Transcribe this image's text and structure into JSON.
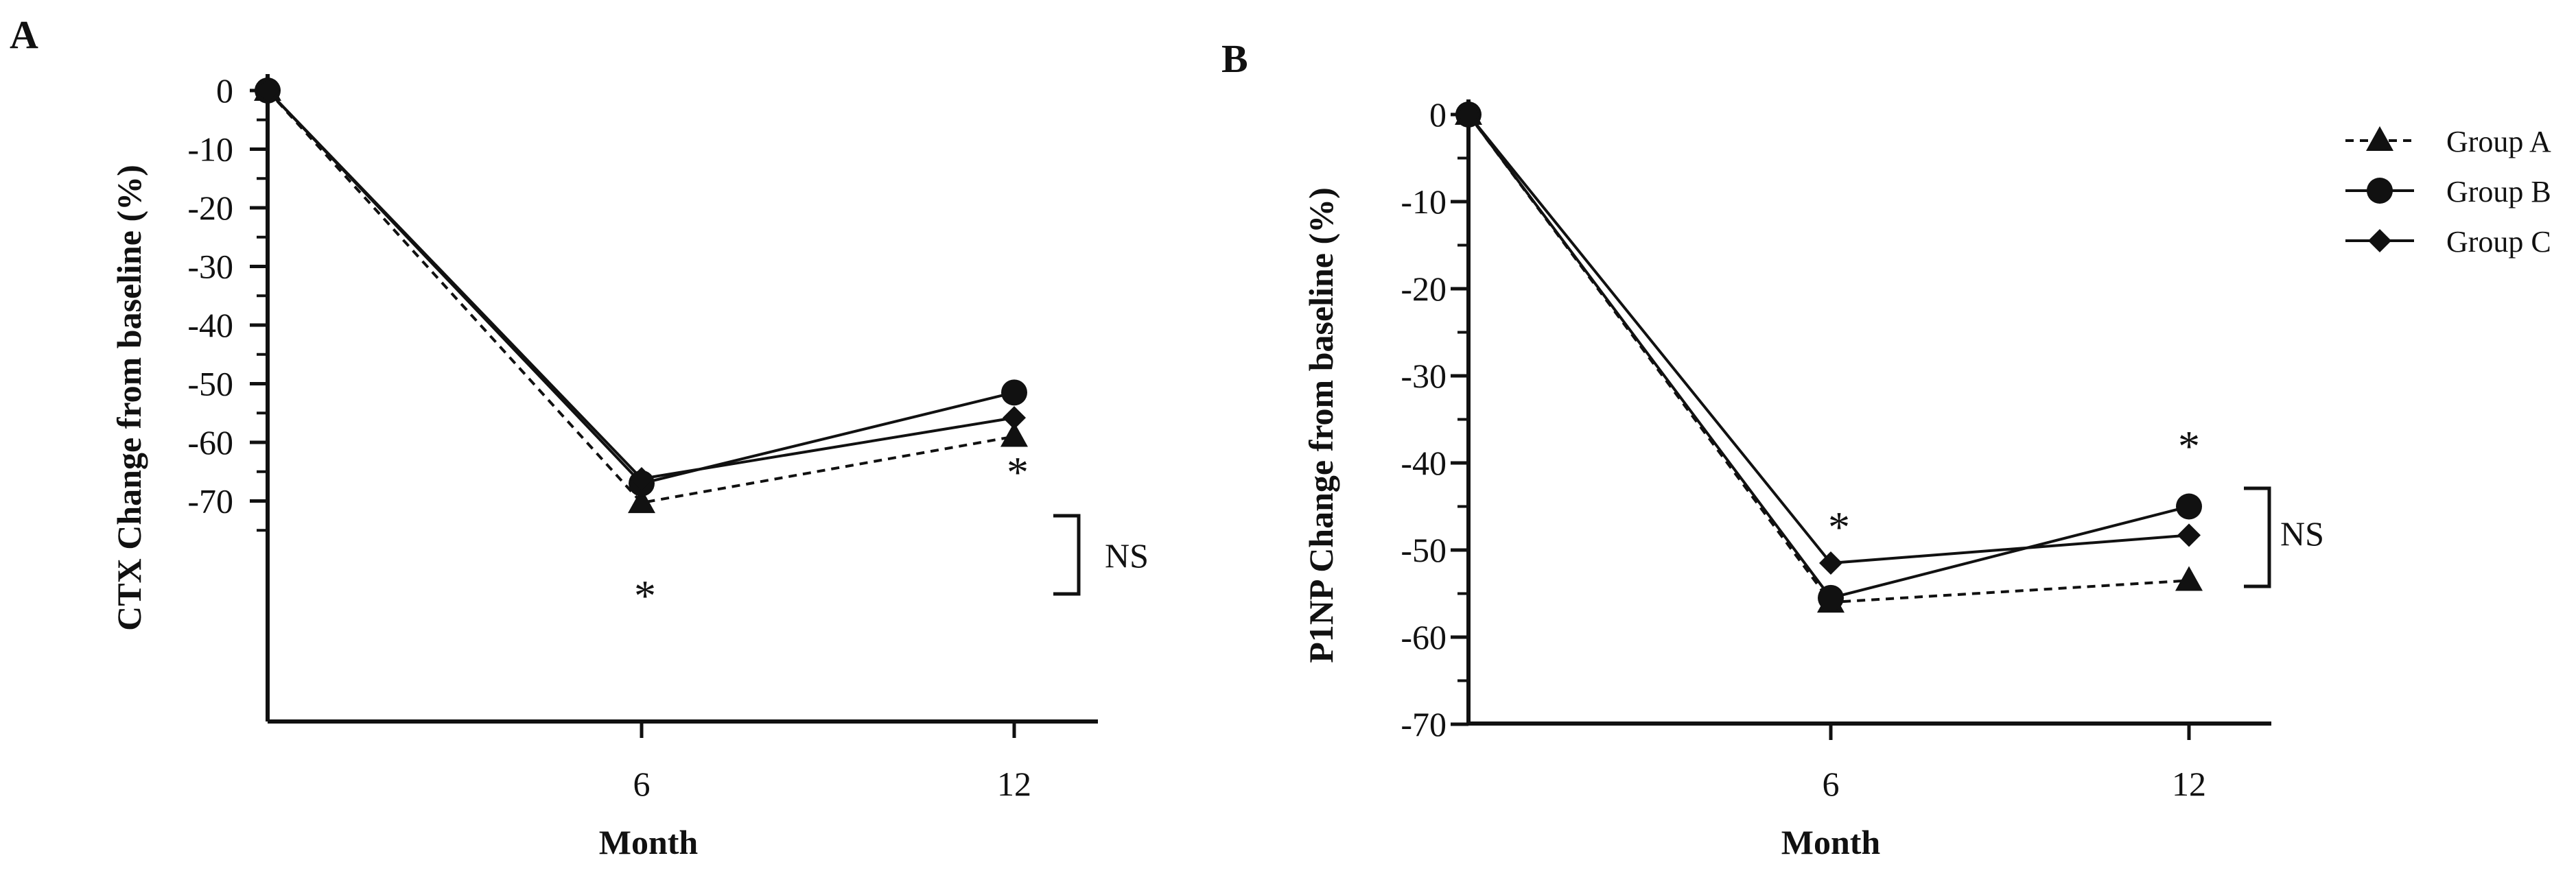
{
  "chart_data": [
    {
      "type": "line",
      "panel": "A",
      "ylabel": "CTX Change from baseline (%)",
      "xlabel": "Month",
      "categories": [
        "",
        "6",
        "12"
      ],
      "x": [
        0,
        6,
        12
      ],
      "yticks": [
        "0",
        "-10",
        "-20",
        "-30",
        "-40",
        "-50",
        "-60",
        "-70"
      ],
      "ylim": [
        -75,
        0
      ],
      "series": [
        {
          "name": "Group A",
          "marker": "triangle",
          "dash": "dashed",
          "values": [
            0,
            -70.3,
            -59
          ]
        },
        {
          "name": "Group B",
          "marker": "circle",
          "dash": "solid",
          "values": [
            0,
            -67,
            -51.5
          ]
        },
        {
          "name": "Group C",
          "marker": "diamond",
          "dash": "solid",
          "values": [
            0,
            -66.2,
            -55.8
          ]
        }
      ],
      "annotations": {
        "sig6": "*",
        "sig12": "*",
        "ns": "NS"
      }
    },
    {
      "type": "line",
      "panel": "B",
      "ylabel": "P1NP Change from baseline (%)",
      "xlabel": "Month",
      "categories": [
        "",
        "6",
        "12"
      ],
      "x": [
        0,
        6,
        12
      ],
      "yticks": [
        "0",
        "-10",
        "-20",
        "-30",
        "-40",
        "-50",
        "-60",
        "-70"
      ],
      "ylim": [
        -70,
        0
      ],
      "series": [
        {
          "name": "Group A",
          "marker": "triangle",
          "dash": "dashed",
          "values": [
            0,
            -56,
            -53.5
          ]
        },
        {
          "name": "Group B",
          "marker": "circle",
          "dash": "solid",
          "values": [
            0,
            -55.5,
            -45
          ]
        },
        {
          "name": "Group C",
          "marker": "diamond",
          "dash": "solid",
          "values": [
            0,
            -51.5,
            -48.3
          ]
        }
      ],
      "annotations": {
        "sig6": "*",
        "sig12": "*",
        "ns": "NS"
      }
    }
  ],
  "legend": [
    {
      "label": "Group A",
      "marker": "triangle",
      "dash": "dashed"
    },
    {
      "label": "Group B",
      "marker": "circle",
      "dash": "solid"
    },
    {
      "label": "Group C",
      "marker": "diamond",
      "dash": "solid"
    }
  ],
  "panel_labels": [
    "A",
    "B"
  ]
}
